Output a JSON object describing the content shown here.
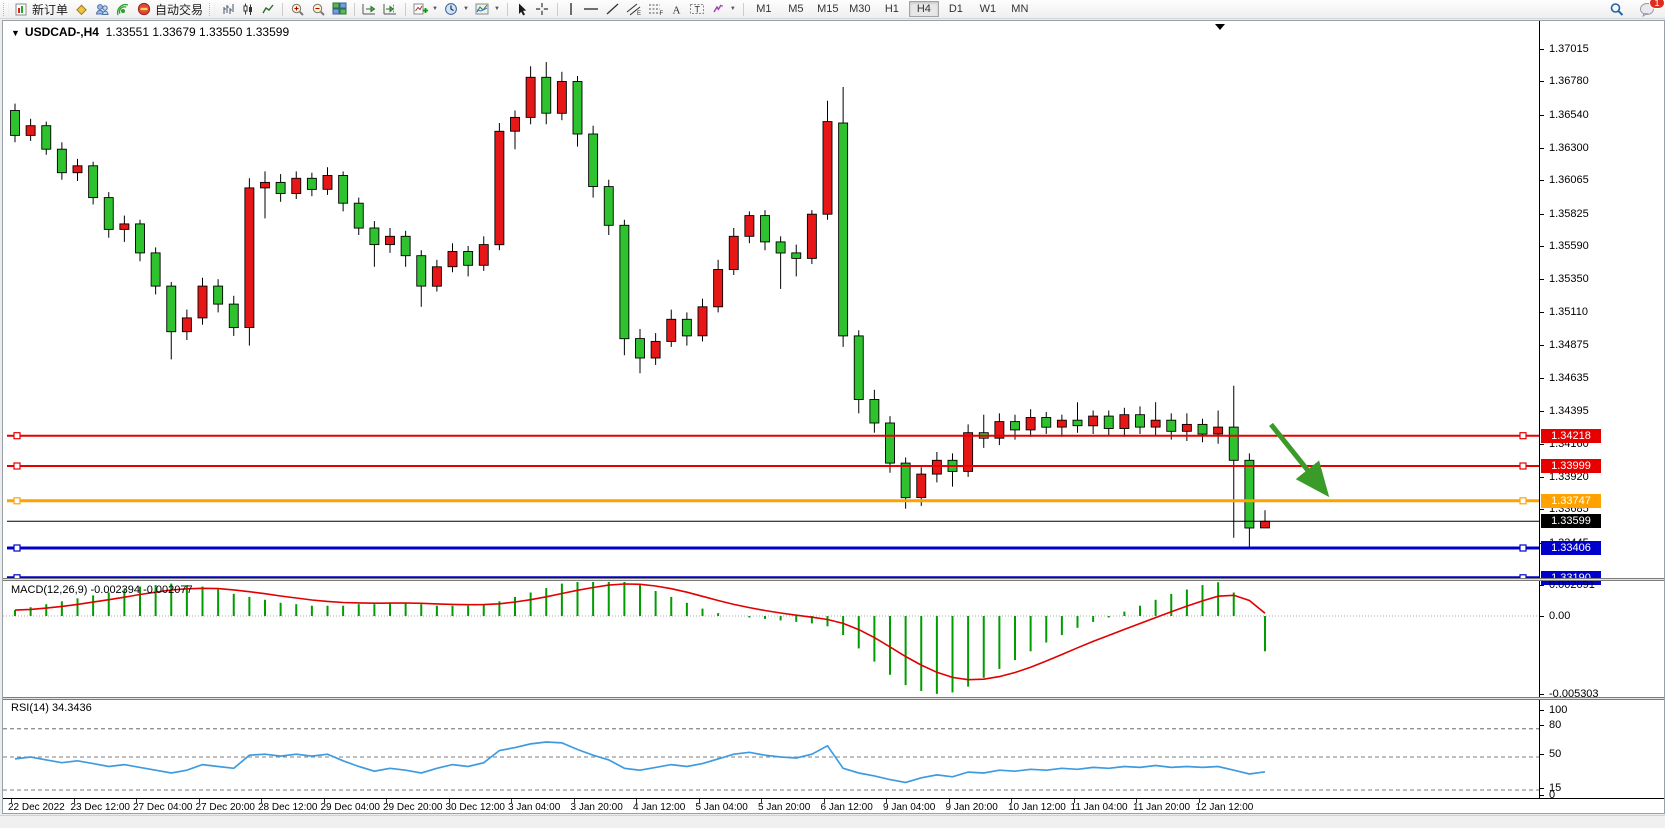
{
  "toolbar": {
    "new_order_label": "新订单",
    "autotrade_label": "自动交易",
    "timeframes": [
      "M1",
      "M5",
      "M15",
      "M30",
      "H1",
      "H4",
      "D1",
      "W1",
      "MN"
    ],
    "active_timeframe": "H4",
    "chat_badge": "1"
  },
  "window": {
    "title_symbol": "USDCAD-,H4",
    "title_ohlc": "1.33551 1.33679 1.33550 1.33599"
  },
  "chart_data": {
    "type": "candlestick",
    "symbol": "USDCAD",
    "timeframe": "H4",
    "conventions": {
      "up_color": "#e81717",
      "down_color": "#2ec22e",
      "note": "red = bullish, green = bearish (Chinese color convention)"
    },
    "current_candle": {
      "open": 1.33551,
      "high": 1.33679,
      "low": 1.3355,
      "close": 1.33599
    },
    "price_axis_ticks": [
      "1.37015",
      "1.36780",
      "1.36540",
      "1.36300",
      "1.36065",
      "1.35825",
      "1.35590",
      "1.35350",
      "1.35110",
      "1.34875",
      "1.34635",
      "1.34395",
      "1.34160",
      "1.33920",
      "1.33685",
      "1.33445"
    ],
    "time_labels": [
      "22 Dec 2022",
      "23 Dec 12:00",
      "27 Dec 04:00",
      "27 Dec 20:00",
      "28 Dec 12:00",
      "29 Dec 04:00",
      "29 Dec 20:00",
      "30 Dec 12:00",
      "3 Jan 04:00",
      "3 Jan 20:00",
      "4 Jan 12:00",
      "5 Jan 04:00",
      "5 Jan 20:00",
      "6 Jan 12:00",
      "9 Jan 04:00",
      "9 Jan 20:00",
      "10 Jan 12:00",
      "11 Jan 04:00",
      "11 Jan 20:00",
      "12 Jan 12:00"
    ],
    "candles_ohlc": [
      [
        1.3657,
        1.3662,
        1.3634,
        1.3639
      ],
      [
        1.3639,
        1.3651,
        1.3635,
        1.3646
      ],
      [
        1.3646,
        1.3649,
        1.3625,
        1.3629
      ],
      [
        1.3629,
        1.3634,
        1.3607,
        1.3612
      ],
      [
        1.3612,
        1.3622,
        1.3606,
        1.3617
      ],
      [
        1.3617,
        1.362,
        1.3589,
        1.3594
      ],
      [
        1.3594,
        1.3598,
        1.3565,
        1.3571
      ],
      [
        1.3571,
        1.3581,
        1.3562,
        1.3575
      ],
      [
        1.3575,
        1.3578,
        1.3548,
        1.3554
      ],
      [
        1.3554,
        1.3558,
        1.3524,
        1.353
      ],
      [
        1.353,
        1.3533,
        1.3477,
        1.3497
      ],
      [
        1.3497,
        1.3513,
        1.3491,
        1.3507
      ],
      [
        1.3507,
        1.3536,
        1.3502,
        1.353
      ],
      [
        1.353,
        1.3535,
        1.3511,
        1.3517
      ],
      [
        1.3517,
        1.3523,
        1.3494,
        1.35
      ],
      [
        1.35,
        1.3608,
        1.3487,
        1.3601
      ],
      [
        1.3601,
        1.3613,
        1.3579,
        1.3605
      ],
      [
        1.3605,
        1.3611,
        1.3591,
        1.3597
      ],
      [
        1.3597,
        1.3613,
        1.3593,
        1.3608
      ],
      [
        1.3608,
        1.3612,
        1.3595,
        1.36
      ],
      [
        1.36,
        1.3616,
        1.3596,
        1.361
      ],
      [
        1.361,
        1.3613,
        1.3584,
        1.359
      ],
      [
        1.359,
        1.3594,
        1.3567,
        1.3572
      ],
      [
        1.3572,
        1.3577,
        1.3544,
        1.356
      ],
      [
        1.356,
        1.3572,
        1.3554,
        1.3566
      ],
      [
        1.3566,
        1.357,
        1.3544,
        1.3552
      ],
      [
        1.3552,
        1.3556,
        1.3515,
        1.353
      ],
      [
        1.353,
        1.3549,
        1.3526,
        1.3544
      ],
      [
        1.3544,
        1.3561,
        1.354,
        1.3555
      ],
      [
        1.3555,
        1.3559,
        1.3537,
        1.3545
      ],
      [
        1.3545,
        1.3566,
        1.3541,
        1.356
      ],
      [
        1.356,
        1.3648,
        1.3556,
        1.3642
      ],
      [
        1.3642,
        1.3657,
        1.3629,
        1.3652
      ],
      [
        1.3652,
        1.3689,
        1.3647,
        1.3681
      ],
      [
        1.3681,
        1.3692,
        1.3647,
        1.3655
      ],
      [
        1.3655,
        1.3685,
        1.365,
        1.3678
      ],
      [
        1.3678,
        1.3682,
        1.3631,
        1.364
      ],
      [
        1.364,
        1.3646,
        1.3594,
        1.3602
      ],
      [
        1.3602,
        1.3607,
        1.3567,
        1.3574
      ],
      [
        1.3574,
        1.3578,
        1.348,
        1.3492
      ],
      [
        1.3492,
        1.3499,
        1.3467,
        1.3478
      ],
      [
        1.3478,
        1.3496,
        1.3473,
        1.349
      ],
      [
        1.349,
        1.3513,
        1.3486,
        1.3506
      ],
      [
        1.3506,
        1.3511,
        1.3487,
        1.3494
      ],
      [
        1.3494,
        1.3521,
        1.349,
        1.3515
      ],
      [
        1.3515,
        1.3549,
        1.3511,
        1.3542
      ],
      [
        1.3542,
        1.3572,
        1.3538,
        1.3566
      ],
      [
        1.3566,
        1.3584,
        1.3561,
        1.3581
      ],
      [
        1.3581,
        1.3585,
        1.3556,
        1.3562
      ],
      [
        1.3562,
        1.3566,
        1.3528,
        1.3554
      ],
      [
        1.3554,
        1.356,
        1.3537,
        1.355
      ],
      [
        1.355,
        1.3585,
        1.3546,
        1.3582
      ],
      [
        1.3582,
        1.3664,
        1.3578,
        1.3649
      ],
      [
        1.3648,
        1.3674,
        1.3486,
        1.3494
      ],
      [
        1.3494,
        1.3498,
        1.3438,
        1.3448
      ],
      [
        1.3448,
        1.3455,
        1.3424,
        1.3431
      ],
      [
        1.3431,
        1.3436,
        1.3395,
        1.3402
      ],
      [
        1.3402,
        1.3406,
        1.3369,
        1.3377
      ],
      [
        1.3377,
        1.3399,
        1.3371,
        1.3394
      ],
      [
        1.3394,
        1.341,
        1.3388,
        1.3404
      ],
      [
        1.3404,
        1.3409,
        1.3385,
        1.3396
      ],
      [
        1.3396,
        1.343,
        1.3392,
        1.3424
      ],
      [
        1.3424,
        1.3437,
        1.3413,
        1.342
      ],
      [
        1.342,
        1.3438,
        1.3415,
        1.3432
      ],
      [
        1.3432,
        1.3437,
        1.3419,
        1.3426
      ],
      [
        1.3426,
        1.3441,
        1.3421,
        1.3435
      ],
      [
        1.3435,
        1.3439,
        1.3423,
        1.3428
      ],
      [
        1.3428,
        1.3437,
        1.3421,
        1.3433
      ],
      [
        1.3433,
        1.3446,
        1.3424,
        1.3429
      ],
      [
        1.3429,
        1.344,
        1.3423,
        1.3436
      ],
      [
        1.3436,
        1.344,
        1.3422,
        1.3427
      ],
      [
        1.3427,
        1.3442,
        1.3421,
        1.3437
      ],
      [
        1.3437,
        1.3443,
        1.3423,
        1.3428
      ],
      [
        1.3428,
        1.3446,
        1.3422,
        1.3433
      ],
      [
        1.3433,
        1.3438,
        1.3419,
        1.3425
      ],
      [
        1.3425,
        1.3438,
        1.3418,
        1.343
      ],
      [
        1.343,
        1.3434,
        1.3417,
        1.3423
      ],
      [
        1.3423,
        1.344,
        1.3416,
        1.3428
      ],
      [
        1.3428,
        1.3458,
        1.3348,
        1.3404
      ],
      [
        1.3404,
        1.3409,
        1.3341,
        1.3355
      ],
      [
        1.33551,
        1.33679,
        1.3355,
        1.33599
      ]
    ],
    "levels": [
      {
        "label": "1.34218",
        "price": 1.34218,
        "color": "#e60000",
        "width": 2,
        "handles": true
      },
      {
        "label": "1.33999",
        "price": 1.33999,
        "color": "#e60000",
        "width": 2,
        "handles": true
      },
      {
        "label": "1.33747",
        "price": 1.33747,
        "color": "#ffa200",
        "width": 3,
        "handles": true
      },
      {
        "label": "1.33599",
        "price": 1.33599,
        "color": "#000000",
        "width": 1,
        "handles": false
      },
      {
        "label": "1.33406",
        "price": 1.33406,
        "color": "#0000cc",
        "width": 3,
        "handles": true
      },
      {
        "label": "1.33190",
        "price": 1.3319,
        "color": "#0000cc",
        "width": 3,
        "handles": true
      }
    ],
    "annotation": {
      "type": "trend-arrow",
      "color": "#3a9b28",
      "from_price": 1.343,
      "to_price": 1.3383,
      "direction": "down-right"
    },
    "macd": {
      "title": "MACD(12,26,9)",
      "value_main": "-0.002394",
      "value_signal": "-0.002077",
      "axis_labels": [
        "0.002091",
        "0.00",
        "-0.005303"
      ],
      "histogram_color": "#009c00",
      "signal_color": "#e00000",
      "histogram": [
        0.0004,
        0.0006,
        0.0008,
        0.001,
        0.0012,
        0.0014,
        0.0016,
        0.0018,
        0.002,
        0.0021,
        0.0022,
        0.0021,
        0.002,
        0.0018,
        0.0015,
        0.0013,
        0.0011,
        0.0009,
        0.0008,
        0.0007,
        0.0007,
        0.0007,
        0.0008,
        0.0008,
        0.0009,
        0.0009,
        0.0008,
        0.0007,
        0.0007,
        0.0007,
        0.0008,
        0.001,
        0.0013,
        0.0016,
        0.0019,
        0.0022,
        0.0024,
        0.0025,
        0.0026,
        0.0024,
        0.0021,
        0.0017,
        0.0013,
        0.0009,
        0.0005,
        0.0002,
        0.0,
        -0.0001,
        -0.0002,
        -0.0003,
        -0.0004,
        -0.0005,
        -0.0007,
        -0.0013,
        -0.0022,
        -0.0031,
        -0.004,
        -0.0047,
        -0.0051,
        -0.0053,
        -0.0052,
        -0.0048,
        -0.0042,
        -0.0036,
        -0.003,
        -0.0024,
        -0.0018,
        -0.0013,
        -0.0008,
        -0.0004,
        -0.0001,
        0.0003,
        0.0007,
        0.0011,
        0.0015,
        0.0018,
        0.0021,
        0.0023,
        0.0016,
        0.0,
        -0.0024
      ]
    },
    "rsi": {
      "title": "RSI(14)",
      "value": "34.3436",
      "axis_labels": [
        "100",
        "80",
        "50",
        "15",
        "0"
      ],
      "dashed_levels": [
        80,
        50,
        15
      ],
      "line_color": "#3f9be0",
      "values": [
        48,
        50,
        47,
        44,
        46,
        43,
        40,
        42,
        39,
        36,
        33,
        36,
        42,
        40,
        38,
        52,
        53,
        51,
        53,
        51,
        53,
        46,
        40,
        35,
        38,
        36,
        33,
        38,
        42,
        40,
        44,
        57,
        60,
        64,
        66,
        65,
        58,
        52,
        47,
        38,
        36,
        39,
        42,
        40,
        43,
        48,
        53,
        55,
        52,
        50,
        49,
        53,
        62,
        38,
        33,
        30,
        26,
        23,
        28,
        31,
        29,
        34,
        33,
        36,
        35,
        37,
        36,
        38,
        37,
        39,
        38,
        40,
        39,
        41,
        39,
        40,
        39,
        40,
        36,
        32,
        34.34
      ]
    }
  }
}
